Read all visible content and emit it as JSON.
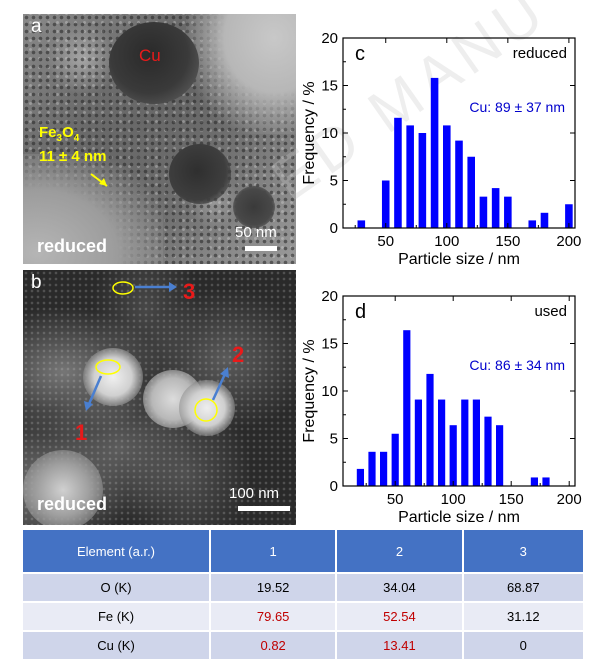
{
  "panel_a": {
    "letter": "a",
    "cu_label": "Cu",
    "fe_label_main": "Fe",
    "fe_label_sub1": "3",
    "fe_label_o": "O",
    "fe_label_sub2": "4",
    "fe_size": "11 ± 4 nm",
    "condition": "reduced",
    "scale": "50 nm"
  },
  "panel_b": {
    "letter": "b",
    "markers": [
      "1",
      "2",
      "3"
    ],
    "condition": "reduced",
    "scale": "100 nm"
  },
  "watermark": "ED MANU",
  "colors": {
    "bar": "#0000ff",
    "annotation": "#0000cc",
    "header": "#4472c4",
    "red_value": "#c00000",
    "marker": "#e81a1a",
    "fe_label": "#ffff00",
    "circle": "#ffff00",
    "arrow": "#4a7fd0"
  },
  "chart_data": [
    {
      "type": "bar",
      "panel": "c",
      "condition": "reduced",
      "annotation": "Cu: 89 ± 37 nm",
      "xlabel": "Particle size / nm",
      "ylabel": "Frequency / %",
      "xlim": [
        15,
        205
      ],
      "ylim": [
        0,
        20
      ],
      "xticks": [
        50,
        100,
        150,
        200
      ],
      "yticks": [
        0,
        5,
        10,
        15,
        20
      ],
      "x": [
        30,
        50,
        60,
        70,
        80,
        90,
        100,
        110,
        120,
        130,
        140,
        150,
        170,
        180,
        200
      ],
      "values": [
        0.8,
        5.0,
        11.6,
        10.8,
        10.0,
        15.8,
        10.8,
        9.2,
        7.5,
        3.3,
        4.2,
        3.3,
        0.8,
        1.6,
        2.5
      ]
    },
    {
      "type": "bar",
      "panel": "d",
      "condition": "used",
      "annotation": "Cu: 86 ± 34 nm",
      "xlabel": "Particle size / nm",
      "ylabel": "Frequency / %",
      "xlim": [
        5,
        205
      ],
      "ylim": [
        0,
        20
      ],
      "xticks": [
        50,
        100,
        150,
        200
      ],
      "yticks": [
        0,
        5,
        10,
        15,
        20
      ],
      "x": [
        20,
        30,
        40,
        50,
        60,
        70,
        80,
        90,
        100,
        110,
        120,
        130,
        140,
        170,
        180
      ],
      "values": [
        1.8,
        3.6,
        3.6,
        5.5,
        16.4,
        9.1,
        11.8,
        9.1,
        6.4,
        9.1,
        9.1,
        7.3,
        6.4,
        0.9,
        0.9
      ]
    }
  ],
  "table": {
    "headers": [
      "Element (a.r.)",
      "1",
      "2",
      "3"
    ],
    "rows": [
      {
        "label": "O (K)",
        "values": [
          "19.52",
          "34.04",
          "68.87"
        ]
      },
      {
        "label": "Fe (K)",
        "values": [
          "79.65",
          "52.54",
          "31.12"
        ]
      },
      {
        "label": "Cu (K)",
        "values": [
          "0.82",
          "13.41",
          "0"
        ]
      }
    ]
  }
}
